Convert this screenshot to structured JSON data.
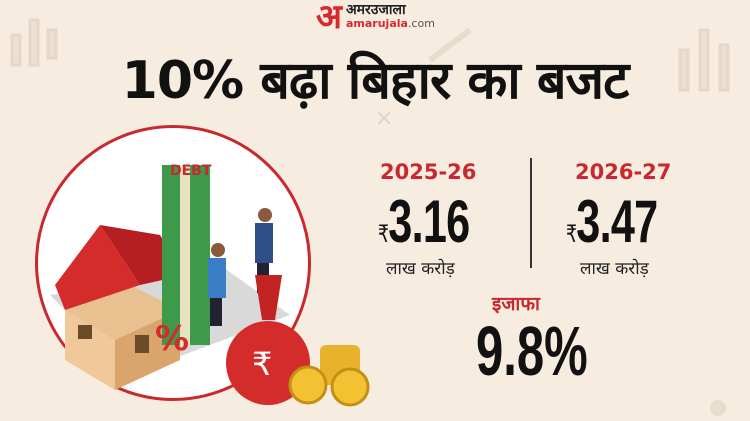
{
  "logo": {
    "mark": "अ",
    "hindi": "अमरउजाला",
    "domain_main": "amarujala",
    "domain_tld": ".com"
  },
  "headline": "10% बढ़ा बिहार का बजट",
  "illustration": {
    "debt_label": "DEBT",
    "percent_symbol": "%",
    "rupee_symbol": "₹"
  },
  "budgets": [
    {
      "year": "2025-26",
      "currency": "₹",
      "amount": "3.16",
      "unit": "लाख करोड़"
    },
    {
      "year": "2026-27",
      "currency": "₹",
      "amount": "3.47",
      "unit": "लाख करोड़"
    }
  ],
  "increase": {
    "label": "इजाफा",
    "value": "9.8%"
  },
  "colors": {
    "background": "#f7ece0",
    "accent": "#c8282e",
    "text": "#111111"
  }
}
